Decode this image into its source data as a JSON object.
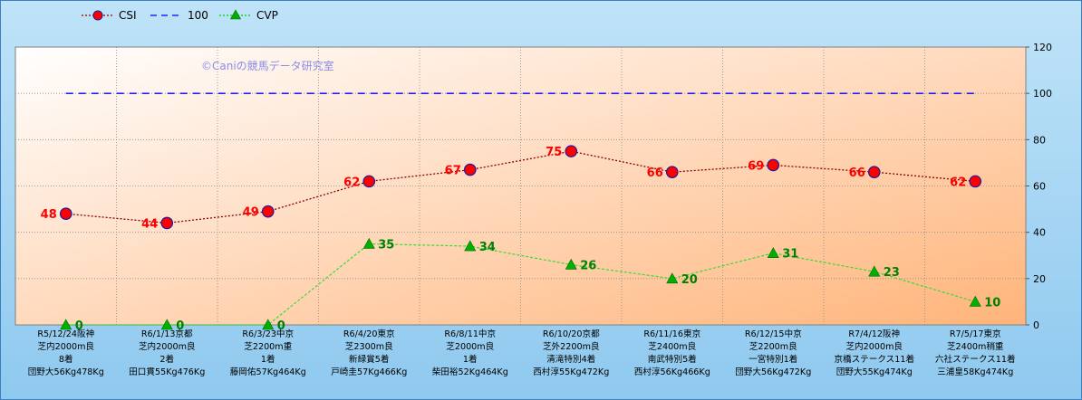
{
  "legend": [
    {
      "name": "CSI",
      "color": "#8b0000",
      "marker": "#ff0000",
      "style": "dotted-circle"
    },
    {
      "name": "100",
      "color": "#0000ff",
      "style": "dashed"
    },
    {
      "name": "CVP",
      "color": "#00cc00",
      "marker": "#00aa00",
      "style": "dotted-triangle"
    }
  ],
  "watermark": "©Caniの競馬データ研究室",
  "colors": {
    "csi_line": "#8b0000",
    "csi_marker": "#ff0000",
    "cvp_line": "#33dd33",
    "cvp_marker": "#00b000",
    "ref_line": "#0000ff"
  },
  "chart_data": {
    "type": "line",
    "ylim": [
      0,
      120
    ],
    "yticks": [
      0,
      20,
      40,
      60,
      80,
      100,
      120
    ],
    "categories": [
      [
        "R5/12/24阪神",
        "芝内2000m良",
        "8着",
        "団野大56Kg478Kg"
      ],
      [
        "R6/1/13京都",
        "芝内2000m良",
        "2着",
        "田口貫55Kg476Kg"
      ],
      [
        "R6/3/23中京",
        "芝2200m重",
        "1着",
        "藤岡佑57Kg464Kg"
      ],
      [
        "R6/4/20東京",
        "芝2300m良",
        "新緑賞5着",
        "戸崎圭57Kg466Kg"
      ],
      [
        "R6/8/11中京",
        "芝2000m良",
        "1着",
        "柴田裕52Kg464Kg"
      ],
      [
        "R6/10/20京都",
        "芝外2200m良",
        "清滝特別4着",
        "西村淳55Kg472Kg"
      ],
      [
        "R6/11/16東京",
        "芝2400m良",
        "南武特別5着",
        "西村淳56Kg466Kg"
      ],
      [
        "R6/12/15中京",
        "芝2200m良",
        "一宮特別1着",
        "団野大56Kg472Kg"
      ],
      [
        "R7/4/12阪神",
        "芝内2000m良",
        "京橋ステークス11着",
        "団野大55Kg474Kg"
      ],
      [
        "R7/5/17東京",
        "芝2400m稍重",
        "六社ステークス11着",
        "三浦皇58Kg474Kg"
      ]
    ],
    "series": [
      {
        "name": "CSI",
        "values": [
          48,
          44,
          49,
          62,
          67,
          75,
          66,
          69,
          66,
          62
        ]
      },
      {
        "name": "100",
        "values": [
          100,
          100,
          100,
          100,
          100,
          100,
          100,
          100,
          100,
          100
        ]
      },
      {
        "name": "CVP",
        "values": [
          0,
          0,
          0,
          35,
          34,
          26,
          20,
          31,
          23,
          10
        ]
      }
    ]
  }
}
